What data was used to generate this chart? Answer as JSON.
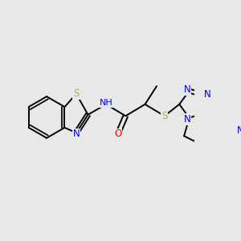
{
  "fig_bg": "#e8e8e8",
  "bond_color": "#000000",
  "bond_width": 1.4,
  "atom_colors": {
    "S": "#b8b800",
    "N": "#0000ee",
    "O": "#ee0000",
    "C": "#000000",
    "H": "#555555"
  },
  "font_size": 8.5,
  "font_size_sub": 7.0
}
